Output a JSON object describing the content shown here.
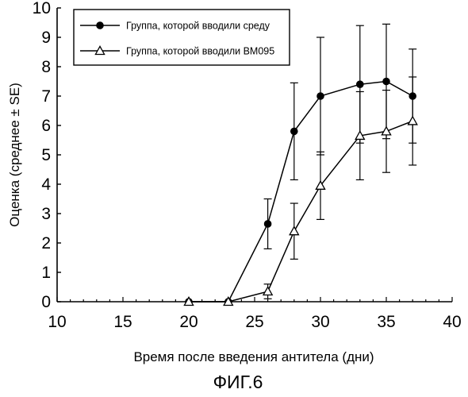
{
  "chart_data": {
    "type": "line",
    "title": "",
    "xlabel": "Время после введения антитела (дни)",
    "ylabel": "Оценка (среднее ± SE)",
    "caption": "ФИГ.6",
    "xlim": [
      10,
      40
    ],
    "ylim": [
      0,
      10
    ],
    "xticks": [
      "10",
      "15",
      "20",
      "25",
      "30",
      "35",
      "40"
    ],
    "yticks": [
      "0",
      "1",
      "2",
      "3",
      "4",
      "5",
      "6",
      "7",
      "8",
      "9",
      "10"
    ],
    "grid": false,
    "legend_position": "top-left",
    "series": [
      {
        "name": "Группа, которой вводили среду",
        "marker": "filled-circle",
        "color": "#000000",
        "points": [
          {
            "x": 20,
            "y": 0,
            "se": 0
          },
          {
            "x": 23,
            "y": 0,
            "se": 0
          },
          {
            "x": 26,
            "y": 2.65,
            "se": 0.85
          },
          {
            "x": 28,
            "y": 5.8,
            "se": 1.65
          },
          {
            "x": 30,
            "y": 7.0,
            "se": 2.0
          },
          {
            "x": 33,
            "y": 7.4,
            "se": 2.0
          },
          {
            "x": 35,
            "y": 7.5,
            "se": 1.95
          },
          {
            "x": 37,
            "y": 7.0,
            "se": 1.6
          }
        ]
      },
      {
        "name": "Группа, которой вводили BM095",
        "marker": "open-triangle",
        "color": "#000000",
        "points": [
          {
            "x": 20,
            "y": 0,
            "se": 0
          },
          {
            "x": 23,
            "y": 0,
            "se": 0
          },
          {
            "x": 26,
            "y": 0.35,
            "se": 0.25
          },
          {
            "x": 28,
            "y": 2.4,
            "se": 0.95
          },
          {
            "x": 30,
            "y": 3.95,
            "se": 1.15
          },
          {
            "x": 33,
            "y": 5.65,
            "se": 1.5
          },
          {
            "x": 35,
            "y": 5.8,
            "se": 1.4
          },
          {
            "x": 37,
            "y": 6.15,
            "se": 1.5
          }
        ]
      }
    ]
  }
}
